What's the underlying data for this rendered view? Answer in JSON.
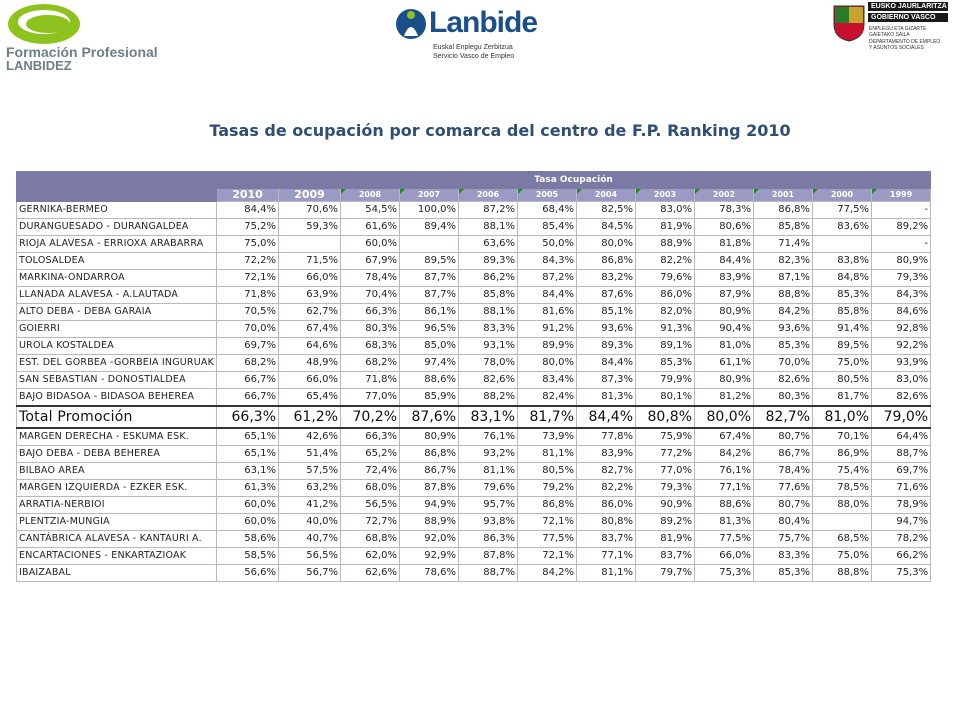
{
  "logos": {
    "fp": {
      "line1": "Formación Profesional",
      "line2": "LANBIDEZ",
      "accent": "#8dc21f"
    },
    "lanbide": {
      "word": "Lanbide",
      "sub1": "Euskal Enplegu Zerbitzua",
      "sub2": "Servicio Vasco de Empleo",
      "color": "#1b4f8a"
    },
    "gv": {
      "line1": "EUSKO JAURLARITZA",
      "line2": "GOBIERNO VASCO",
      "small1": "ENPLEGU ETA GIZARTE",
      "small2": "GAIETAKO SAILA",
      "small3": "DEPARTAMENTO DE EMPLEO",
      "small4": "Y ASUNTOS SOCIALES"
    }
  },
  "title": "Tasas de ocupación por comarca del centro de F.P. Ranking 2010",
  "table": {
    "group_header": "Tasa Ocupación",
    "years": [
      "2010",
      "2009",
      "2008",
      "2007",
      "2006",
      "2005",
      "2004",
      "2003",
      "2002",
      "2001",
      "2000",
      "1999"
    ],
    "rows_top": [
      {
        "name": "GERNIKA-BERMEO",
        "values": [
          "84,4%",
          "70,6%",
          "54,5%",
          "100,0%",
          "87,2%",
          "68,4%",
          "82,5%",
          "83,0%",
          "78,3%",
          "86,8%",
          "77,5%",
          "-"
        ]
      },
      {
        "name": "DURANGUESADO - DURANGALDEA",
        "values": [
          "75,2%",
          "59,3%",
          "61,6%",
          "89,4%",
          "88,1%",
          "85,4%",
          "84,5%",
          "81,9%",
          "80,6%",
          "85,8%",
          "83,6%",
          "89,2%"
        ]
      },
      {
        "name": "RIOJA ALAVESA - ERRIOXA ARABARRA",
        "values": [
          "75,0%",
          "",
          "60,0%",
          "",
          "63,6%",
          "50,0%",
          "80,0%",
          "88,9%",
          "81,8%",
          "71,4%",
          "",
          "-"
        ]
      },
      {
        "name": "TOLOSALDEA",
        "values": [
          "72,2%",
          "71,5%",
          "67,9%",
          "89,5%",
          "89,3%",
          "84,3%",
          "86,8%",
          "82,2%",
          "84,4%",
          "82,3%",
          "83,8%",
          "80,9%"
        ]
      },
      {
        "name": "MARKINA-ONDARROA",
        "values": [
          "72,1%",
          "66,0%",
          "78,4%",
          "87,7%",
          "86,2%",
          "87,2%",
          "83,2%",
          "79,6%",
          "83,9%",
          "87,1%",
          "84,8%",
          "79,3%"
        ]
      },
      {
        "name": "LLANADA ALAVESA - A.LAUTADA",
        "values": [
          "71,8%",
          "63,9%",
          "70,4%",
          "87,7%",
          "85,8%",
          "84,4%",
          "87,6%",
          "86,0%",
          "87,9%",
          "88,8%",
          "85,3%",
          "84,3%"
        ]
      },
      {
        "name": "ALTO DEBA - DEBA GARAIA",
        "values": [
          "70,5%",
          "62,7%",
          "66,3%",
          "86,1%",
          "88,1%",
          "81,6%",
          "85,1%",
          "82,0%",
          "80,9%",
          "84,2%",
          "85,8%",
          "84,6%"
        ]
      },
      {
        "name": "GOIERRI",
        "values": [
          "70,0%",
          "67,4%",
          "80,3%",
          "96,5%",
          "83,3%",
          "91,2%",
          "93,6%",
          "91,3%",
          "90,4%",
          "93,6%",
          "91,4%",
          "92,8%"
        ]
      },
      {
        "name": "UROLA KOSTALDEA",
        "values": [
          "69,7%",
          "64,6%",
          "68,3%",
          "85,0%",
          "93,1%",
          "89,9%",
          "89,3%",
          "89,1%",
          "81,0%",
          "85,3%",
          "89,5%",
          "92,2%"
        ]
      },
      {
        "name": "EST. DEL GORBEA -GORBEIA INGURUAK",
        "values": [
          "68,2%",
          "48,9%",
          "68,2%",
          "97,4%",
          "78,0%",
          "80,0%",
          "84,4%",
          "85,3%",
          "61,1%",
          "70,0%",
          "75,0%",
          "93,9%"
        ]
      },
      {
        "name": "SAN SEBASTIAN - DONOSTIALDEA",
        "values": [
          "66,7%",
          "66,0%",
          "71,8%",
          "88,6%",
          "82,6%",
          "83,4%",
          "87,3%",
          "79,9%",
          "80,9%",
          "82,6%",
          "80,5%",
          "83,0%"
        ]
      },
      {
        "name": "BAJO BIDASOA - BIDASOA BEHEREA",
        "values": [
          "66,7%",
          "65,4%",
          "77,0%",
          "85,9%",
          "88,2%",
          "82,4%",
          "81,3%",
          "80,1%",
          "81,2%",
          "80,3%",
          "81,7%",
          "82,6%"
        ]
      }
    ],
    "total": {
      "name": "Total Promoción",
      "values": [
        "66,3%",
        "61,2%",
        "70,2%",
        "87,6%",
        "83,1%",
        "81,7%",
        "84,4%",
        "80,8%",
        "80,0%",
        "82,7%",
        "81,0%",
        "79,0%"
      ]
    },
    "rows_bottom": [
      {
        "name": "MARGEN DERECHA - ESKUMA ESK.",
        "values": [
          "65,1%",
          "42,6%",
          "66,3%",
          "80,9%",
          "76,1%",
          "73,9%",
          "77,8%",
          "75,9%",
          "67,4%",
          "80,7%",
          "70,1%",
          "64,4%"
        ]
      },
      {
        "name": "BAJO DEBA - DEBA BEHEREA",
        "values": [
          "65,1%",
          "51,4%",
          "65,2%",
          "86,8%",
          "93,2%",
          "81,1%",
          "83,9%",
          "77,2%",
          "84,2%",
          "86,7%",
          "86,9%",
          "88,7%"
        ]
      },
      {
        "name": "BILBAO AREA",
        "values": [
          "63,1%",
          "57,5%",
          "72,4%",
          "86,7%",
          "81,1%",
          "80,5%",
          "82,7%",
          "77,0%",
          "76,1%",
          "78,4%",
          "75,4%",
          "69,7%"
        ]
      },
      {
        "name": "MARGEN IZQUIERDA - EZKER ESK.",
        "values": [
          "61,3%",
          "63,2%",
          "68,0%",
          "87,8%",
          "79,6%",
          "79,2%",
          "82,2%",
          "79,3%",
          "77,1%",
          "77,6%",
          "78,5%",
          "71,6%"
        ]
      },
      {
        "name": "ARRATIA-NERBIOI",
        "values": [
          "60,0%",
          "41,2%",
          "56,5%",
          "94,9%",
          "95,7%",
          "86,8%",
          "86,0%",
          "90,9%",
          "88,6%",
          "80,7%",
          "88,0%",
          "78,9%"
        ]
      },
      {
        "name": "PLENTZIA-MUNGIA",
        "values": [
          "60,0%",
          "40,0%",
          "72,7%",
          "88,9%",
          "93,8%",
          "72,1%",
          "80,8%",
          "89,2%",
          "81,3%",
          "80,4%",
          "",
          "94,7%"
        ]
      },
      {
        "name": "CANTÁBRICA ALAVESA - KANTAURI A.",
        "values": [
          "58,6%",
          "40,7%",
          "68,8%",
          "92,0%",
          "86,3%",
          "77,5%",
          "83,7%",
          "81,9%",
          "77,5%",
          "75,7%",
          "68,5%",
          "78,2%"
        ]
      },
      {
        "name": "ENCARTACIONES - ENKARTAZIOAK",
        "values": [
          "58,5%",
          "56,5%",
          "62,0%",
          "92,9%",
          "87,8%",
          "72,1%",
          "77,1%",
          "83,7%",
          "66,0%",
          "83,3%",
          "75,0%",
          "66,2%"
        ]
      },
      {
        "name": "IBAIZABAL",
        "values": [
          "56,6%",
          "56,7%",
          "62,6%",
          "78,6%",
          "88,7%",
          "84,2%",
          "81,1%",
          "79,7%",
          "75,3%",
          "85,3%",
          "88,8%",
          "75,3%"
        ]
      }
    ]
  }
}
